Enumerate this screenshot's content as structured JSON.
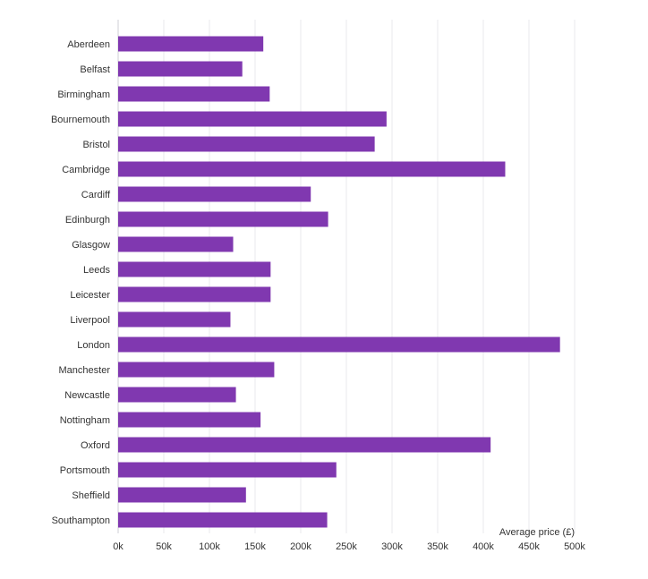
{
  "chart_data": {
    "type": "bar",
    "orientation": "horizontal",
    "xlabel": "Average price (£)",
    "xlim": [
      0,
      500000
    ],
    "xticks": [
      {
        "value": 0,
        "label": "0k"
      },
      {
        "value": 50000,
        "label": "50k"
      },
      {
        "value": 100000,
        "label": "100k"
      },
      {
        "value": 150000,
        "label": "150k"
      },
      {
        "value": 200000,
        "label": "200k"
      },
      {
        "value": 250000,
        "label": "250k"
      },
      {
        "value": 300000,
        "label": "300k"
      },
      {
        "value": 350000,
        "label": "350k"
      },
      {
        "value": 400000,
        "label": "400k"
      },
      {
        "value": 450000,
        "label": "450k"
      },
      {
        "value": 500000,
        "label": "500k"
      }
    ],
    "categories": [
      "Aberdeen",
      "Belfast",
      "Birmingham",
      "Bournemouth",
      "Bristol",
      "Cambridge",
      "Cardiff",
      "Edinburgh",
      "Glasgow",
      "Leeds",
      "Leicester",
      "Liverpool",
      "London",
      "Manchester",
      "Newcastle",
      "Nottingham",
      "Oxford",
      "Portsmouth",
      "Sheffield",
      "Southampton"
    ],
    "values": [
      159000,
      136000,
      166000,
      294000,
      281000,
      424000,
      211000,
      230000,
      126000,
      167000,
      167000,
      123000,
      484000,
      171000,
      129000,
      156000,
      408000,
      239000,
      140000,
      229000
    ],
    "grid": true,
    "bar_color": "#8038b0"
  }
}
